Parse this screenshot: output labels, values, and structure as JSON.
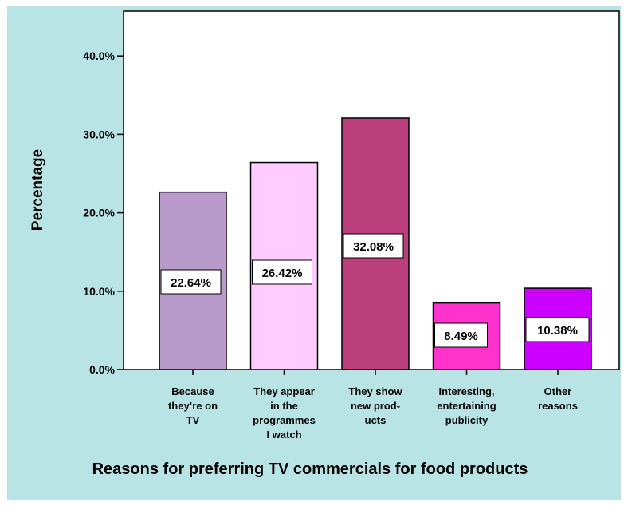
{
  "chart_data": {
    "type": "bar",
    "title": "",
    "xlabel": "Reasons for preferring TV commercials for food products",
    "ylabel": "Percentage",
    "ylim": [
      0,
      45
    ],
    "yticks": [
      0,
      10,
      20,
      30,
      40
    ],
    "ytick_labels": [
      "0.0%",
      "10.0%",
      "20.0%",
      "30.0%",
      "40.0%"
    ],
    "grid": false,
    "legend": "none",
    "categories": [
      [
        "Because",
        "they’re on",
        "TV"
      ],
      [
        "They appear",
        "in the",
        "programmes",
        "I watch"
      ],
      [
        "They show",
        "new prod-",
        "ucts"
      ],
      [
        "Interesting,",
        "entertaining",
        "publicity"
      ],
      [
        "Other",
        "reasons"
      ]
    ],
    "values": [
      22.64,
      26.42,
      32.08,
      8.49,
      10.38
    ],
    "data_labels": [
      "22.64%",
      "26.42%",
      "32.08%",
      "8.49%",
      "10.38%"
    ],
    "colors": [
      "#B89ACB",
      "#FFCCFF",
      "#BB3F7D",
      "#FF33CC",
      "#CC00FF"
    ],
    "background_color": "#B8E4E6",
    "plot_background_color": "#FFFFFF"
  }
}
